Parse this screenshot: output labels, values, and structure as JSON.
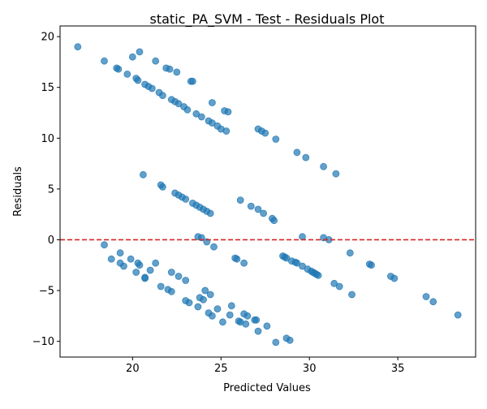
{
  "chart_data": {
    "type": "scatter",
    "title": "static_PA_SVM - Test - Residuals Plot",
    "xlabel": "Predicted Values",
    "ylabel": "Residuals",
    "xlim": [
      15.9,
      39.4
    ],
    "ylim": [
      -11.55,
      21.05
    ],
    "xticks": [
      20,
      25,
      30,
      35
    ],
    "yticks": [
      -10,
      -5,
      0,
      5,
      10,
      15,
      20
    ],
    "grid": false,
    "legend": "none",
    "reference_line": {
      "y": 0,
      "style": "dashed",
      "color": "#d62728"
    },
    "point_color": "#1f77b4",
    "points": [
      [
        16.9,
        19.0
      ],
      [
        18.4,
        17.6
      ],
      [
        19.1,
        16.9
      ],
      [
        19.2,
        16.8
      ],
      [
        19.7,
        16.3
      ],
      [
        20.0,
        18.0
      ],
      [
        20.2,
        15.9
      ],
      [
        20.4,
        18.5
      ],
      [
        20.3,
        15.7
      ],
      [
        20.7,
        15.3
      ],
      [
        20.9,
        15.1
      ],
      [
        21.1,
        14.9
      ],
      [
        21.3,
        17.6
      ],
      [
        21.5,
        14.5
      ],
      [
        21.7,
        14.2
      ],
      [
        21.9,
        16.9
      ],
      [
        22.1,
        16.8
      ],
      [
        22.2,
        13.8
      ],
      [
        22.4,
        13.6
      ],
      [
        22.5,
        16.5
      ],
      [
        22.6,
        13.4
      ],
      [
        22.9,
        13.1
      ],
      [
        23.1,
        12.8
      ],
      [
        23.3,
        15.6
      ],
      [
        23.4,
        15.6
      ],
      [
        23.6,
        12.4
      ],
      [
        23.9,
        12.1
      ],
      [
        24.3,
        11.7
      ],
      [
        24.5,
        11.5
      ],
      [
        24.5,
        13.5
      ],
      [
        24.8,
        11.2
      ],
      [
        25.0,
        10.9
      ],
      [
        25.2,
        12.7
      ],
      [
        25.3,
        10.7
      ],
      [
        25.4,
        12.6
      ],
      [
        27.1,
        10.9
      ],
      [
        27.3,
        10.7
      ],
      [
        27.5,
        10.5
      ],
      [
        28.1,
        9.9
      ],
      [
        29.3,
        8.6
      ],
      [
        29.8,
        8.1
      ],
      [
        30.8,
        7.2
      ],
      [
        31.5,
        6.5
      ],
      [
        20.6,
        6.4
      ],
      [
        21.6,
        5.4
      ],
      [
        21.7,
        5.2
      ],
      [
        22.4,
        4.6
      ],
      [
        22.6,
        4.4
      ],
      [
        22.8,
        4.2
      ],
      [
        23.0,
        4.0
      ],
      [
        23.4,
        3.6
      ],
      [
        23.6,
        3.4
      ],
      [
        23.8,
        3.2
      ],
      [
        24.0,
        3.0
      ],
      [
        24.2,
        2.8
      ],
      [
        24.4,
        2.6
      ],
      [
        26.1,
        3.9
      ],
      [
        26.7,
        3.3
      ],
      [
        27.1,
        3.0
      ],
      [
        27.4,
        2.6
      ],
      [
        27.9,
        2.1
      ],
      [
        28.0,
        1.9
      ],
      [
        18.4,
        -0.5
      ],
      [
        23.7,
        0.3
      ],
      [
        23.9,
        0.2
      ],
      [
        24.2,
        -0.2
      ],
      [
        24.6,
        -0.7
      ],
      [
        29.6,
        0.3
      ],
      [
        30.8,
        0.2
      ],
      [
        31.1,
        0.0
      ],
      [
        19.3,
        -1.3
      ],
      [
        18.8,
        -1.9
      ],
      [
        19.3,
        -2.3
      ],
      [
        19.9,
        -1.9
      ],
      [
        20.3,
        -2.3
      ],
      [
        20.4,
        -2.5
      ],
      [
        21.3,
        -2.3
      ],
      [
        21.0,
        -3.0
      ],
      [
        19.5,
        -2.6
      ],
      [
        20.2,
        -3.2
      ],
      [
        20.7,
        -3.7
      ],
      [
        20.7,
        -3.8
      ],
      [
        22.2,
        -3.2
      ],
      [
        22.6,
        -3.6
      ],
      [
        23.0,
        -4.0
      ],
      [
        25.8,
        -1.8
      ],
      [
        25.9,
        -1.9
      ],
      [
        26.3,
        -2.3
      ],
      [
        28.5,
        -1.6
      ],
      [
        28.6,
        -1.7
      ],
      [
        28.7,
        -1.8
      ],
      [
        29.0,
        -2.1
      ],
      [
        29.2,
        -2.2
      ],
      [
        29.3,
        -2.3
      ],
      [
        29.6,
        -2.6
      ],
      [
        29.9,
        -2.9
      ],
      [
        30.1,
        -3.1
      ],
      [
        30.2,
        -3.2
      ],
      [
        30.3,
        -3.3
      ],
      [
        30.4,
        -3.4
      ],
      [
        30.5,
        -3.5
      ],
      [
        32.3,
        -1.3
      ],
      [
        33.4,
        -2.4
      ],
      [
        33.5,
        -2.5
      ],
      [
        31.4,
        -4.3
      ],
      [
        31.7,
        -4.6
      ],
      [
        32.4,
        -5.4
      ],
      [
        34.6,
        -3.6
      ],
      [
        34.8,
        -3.8
      ],
      [
        21.6,
        -4.6
      ],
      [
        22.0,
        -4.9
      ],
      [
        22.2,
        -5.1
      ],
      [
        23.0,
        -6.0
      ],
      [
        23.2,
        -6.2
      ],
      [
        23.8,
        -5.7
      ],
      [
        24.0,
        -5.9
      ],
      [
        23.7,
        -6.6
      ],
      [
        24.1,
        -5.0
      ],
      [
        24.4,
        -5.4
      ],
      [
        24.3,
        -7.2
      ],
      [
        24.5,
        -7.5
      ],
      [
        24.8,
        -6.8
      ],
      [
        25.1,
        -8.1
      ],
      [
        25.5,
        -7.4
      ],
      [
        25.6,
        -6.5
      ],
      [
        26.0,
        -8.0
      ],
      [
        26.1,
        -8.1
      ],
      [
        26.3,
        -7.3
      ],
      [
        26.4,
        -8.3
      ],
      [
        26.5,
        -7.5
      ],
      [
        26.9,
        -7.9
      ],
      [
        27.0,
        -7.9
      ],
      [
        27.1,
        -9.0
      ],
      [
        27.6,
        -8.5
      ],
      [
        28.1,
        -10.1
      ],
      [
        28.7,
        -9.7
      ],
      [
        28.9,
        -9.9
      ],
      [
        36.6,
        -5.6
      ],
      [
        37.0,
        -6.1
      ],
      [
        38.4,
        -7.4
      ]
    ]
  }
}
